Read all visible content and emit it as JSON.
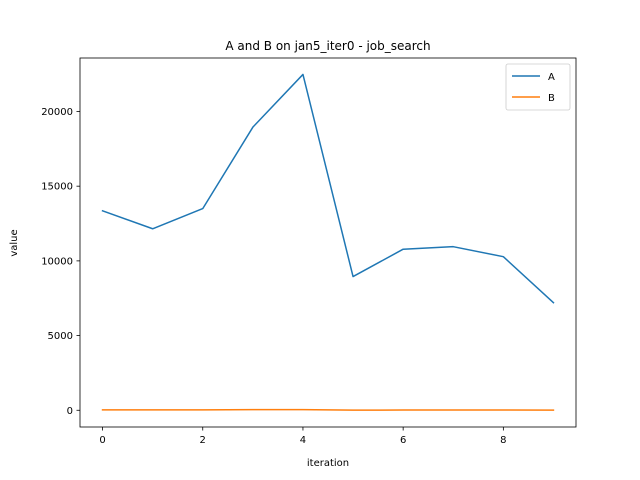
{
  "chart_data": {
    "type": "line",
    "title": "A and B on jan5_iter0 - job_search",
    "xlabel": "iteration",
    "ylabel": "value",
    "x": [
      0,
      1,
      2,
      3,
      4,
      5,
      6,
      7,
      8,
      9
    ],
    "xlim": [
      -0.45,
      9.45
    ],
    "ylim": [
      -1120,
      23580
    ],
    "xticks": [
      0,
      2,
      4,
      6,
      8
    ],
    "yticks": [
      0,
      5000,
      10000,
      15000,
      20000
    ],
    "grid": false,
    "legend_position": "top-right",
    "series": [
      {
        "name": "A",
        "color": "#1f77b4",
        "values": [
          13350,
          12150,
          13500,
          18950,
          22480,
          8950,
          10780,
          10950,
          10280,
          7200
        ]
      },
      {
        "name": "B",
        "color": "#ff7f0e",
        "values": [
          30,
          25,
          30,
          40,
          45,
          10,
          15,
          20,
          15,
          10
        ]
      }
    ]
  }
}
